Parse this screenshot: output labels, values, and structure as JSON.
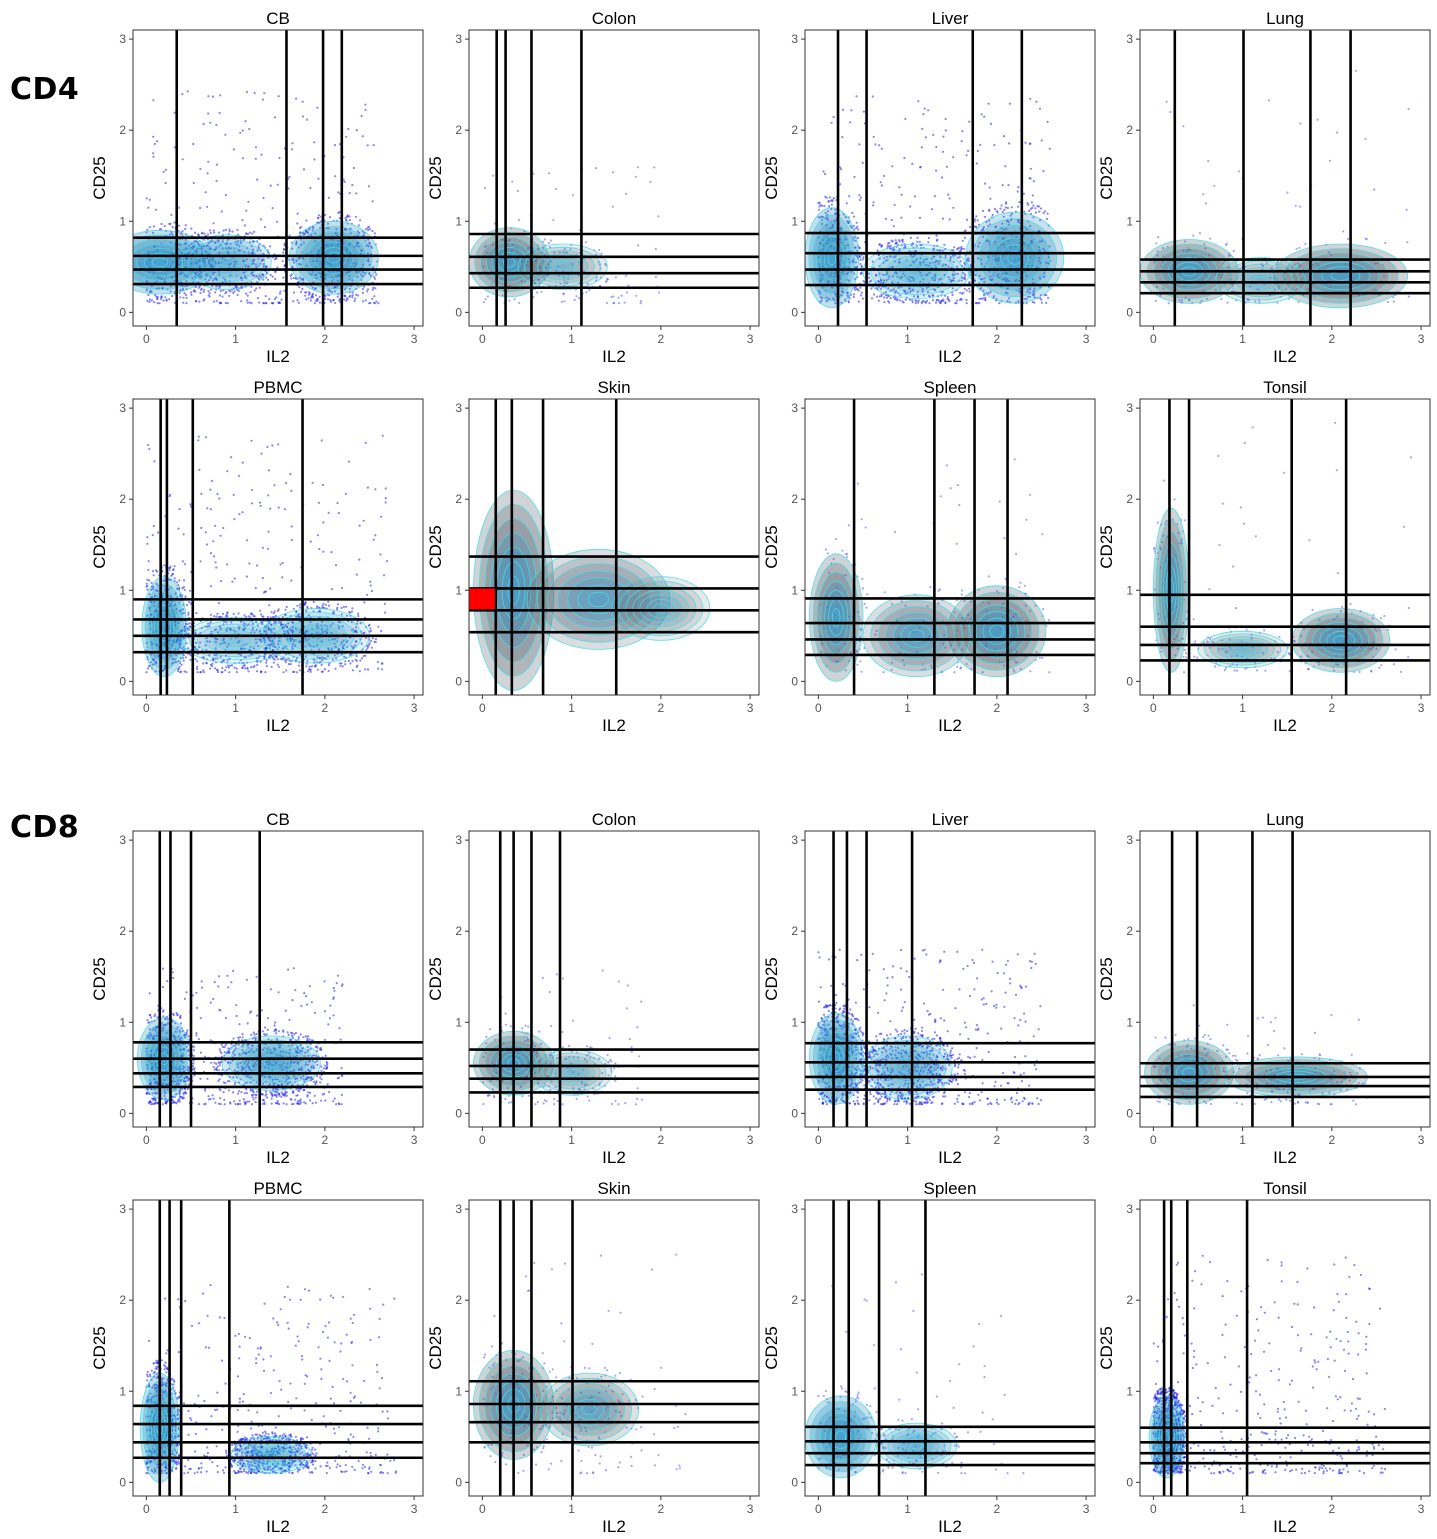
{
  "groups": [
    {
      "name": "CD4",
      "panels": [
        {
          "tissue": "CB",
          "vlines": [
            0.34,
            1.57,
            1.98,
            2.19
          ],
          "hlines": [
            0.82,
            0.62,
            0.47,
            0.31
          ],
          "density": [
            [
              0.15,
              0.55,
              0.6,
              0.35,
              1.0
            ],
            [
              2.1,
              0.6,
              0.5,
              0.4,
              1.0
            ],
            [
              0.9,
              0.55,
              0.5,
              0.3,
              0.6
            ]
          ],
          "scatter": {
            "x": [
              0,
              2.6
            ],
            "y": [
              0.1,
              2.5
            ],
            "density": "high"
          },
          "overlay": "blue"
        },
        {
          "tissue": "Colon",
          "vlines": [
            0.16,
            0.26,
            0.55,
            1.11
          ],
          "hlines": [
            0.86,
            0.61,
            0.43,
            0.27
          ],
          "density": [
            [
              0.3,
              0.55,
              0.45,
              0.38,
              1.0
            ],
            [
              0.9,
              0.5,
              0.5,
              0.25,
              0.5
            ]
          ],
          "scatter": {
            "x": [
              0,
              2.0
            ],
            "y": [
              0.1,
              1.6
            ],
            "density": "low"
          },
          "overlay": "grey"
        },
        {
          "tissue": "Liver",
          "vlines": [
            0.22,
            0.54,
            1.73,
            2.28
          ],
          "hlines": [
            0.87,
            0.65,
            0.47,
            0.3
          ],
          "density": [
            [
              0.15,
              0.6,
              0.3,
              0.55,
              1.0
            ],
            [
              2.2,
              0.6,
              0.55,
              0.5,
              0.9
            ],
            [
              1.1,
              0.45,
              0.6,
              0.3,
              0.5
            ]
          ],
          "scatter": {
            "x": [
              0,
              2.6
            ],
            "y": [
              0.1,
              2.4
            ],
            "density": "high"
          },
          "overlay": "blue"
        },
        {
          "tissue": "Lung",
          "vlines": [
            0.24,
            1.01,
            1.76,
            2.21
          ],
          "hlines": [
            0.58,
            0.45,
            0.33,
            0.21
          ],
          "density": [
            [
              0.4,
              0.45,
              0.55,
              0.35,
              1.0
            ],
            [
              2.1,
              0.4,
              0.75,
              0.35,
              1.0
            ],
            [
              1.2,
              0.35,
              0.5,
              0.25,
              0.5
            ]
          ],
          "scatter": {
            "x": [
              0,
              2.9
            ],
            "y": [
              0.1,
              2.8
            ],
            "density": "low"
          },
          "overlay": "grey"
        }
      ]
    },
    {
      "name": "CD4",
      "panels": [
        {
          "tissue": "PBMC",
          "vlines": [
            0.16,
            0.23,
            0.52,
            1.75
          ],
          "hlines": [
            0.9,
            0.68,
            0.5,
            0.32
          ],
          "density": [
            [
              0.2,
              0.6,
              0.25,
              0.55,
              1.0
            ],
            [
              1.9,
              0.5,
              0.6,
              0.3,
              0.5
            ],
            [
              1.0,
              0.45,
              0.6,
              0.25,
              0.4
            ]
          ],
          "scatter": {
            "x": [
              0,
              2.7
            ],
            "y": [
              0.1,
              2.7
            ],
            "density": "high"
          },
          "overlay": "blue"
        },
        {
          "tissue": "Skin",
          "vlines": [
            0.15,
            0.33,
            0.68,
            1.5
          ],
          "hlines": [
            1.37,
            1.02,
            0.78,
            0.54
          ],
          "density": [
            [
              0.35,
              1.0,
              0.45,
              1.1,
              1.0
            ],
            [
              1.3,
              0.9,
              0.8,
              0.55,
              0.8
            ],
            [
              2.0,
              0.8,
              0.55,
              0.35,
              0.5
            ]
          ],
          "scatter": {
            "x": [
              0,
              2.5
            ],
            "y": [
              0.1,
              2.4
            ],
            "density": "none"
          },
          "overlay": "grey",
          "marker": {
            "x0": -0.18,
            "x1": 0.14,
            "y0": 0.79,
            "y1": 1.02
          }
        },
        {
          "tissue": "Spleen",
          "vlines": [
            0.4,
            1.3,
            1.75,
            2.12
          ],
          "hlines": [
            0.91,
            0.64,
            0.46,
            0.29
          ],
          "density": [
            [
              0.2,
              0.7,
              0.3,
              0.7,
              1.0
            ],
            [
              2.0,
              0.55,
              0.55,
              0.5,
              1.0
            ],
            [
              1.1,
              0.5,
              0.6,
              0.45,
              0.8
            ]
          ],
          "scatter": {
            "x": [
              0,
              2.6
            ],
            "y": [
              0.1,
              2.5
            ],
            "density": "low"
          },
          "overlay": "grey"
        },
        {
          "tissue": "Tonsil",
          "vlines": [
            0.18,
            0.4,
            1.55,
            2.16
          ],
          "hlines": [
            0.95,
            0.6,
            0.4,
            0.23
          ],
          "density": [
            [
              0.2,
              1.0,
              0.2,
              0.9,
              1.0
            ],
            [
              2.1,
              0.45,
              0.55,
              0.35,
              1.0
            ],
            [
              1.0,
              0.35,
              0.5,
              0.2,
              0.5
            ]
          ],
          "scatter": {
            "x": [
              0,
              2.9
            ],
            "y": [
              0.1,
              2.9
            ],
            "density": "low"
          },
          "overlay": "grey"
        }
      ]
    },
    {
      "name": "CD8",
      "panels": [
        {
          "tissue": "CB",
          "vlines": [
            0.15,
            0.27,
            0.5,
            1.27
          ],
          "hlines": [
            0.78,
            0.6,
            0.44,
            0.29
          ],
          "density": [
            [
              0.2,
              0.6,
              0.3,
              0.45,
              1.0
            ],
            [
              1.4,
              0.55,
              0.55,
              0.3,
              0.7
            ]
          ],
          "scatter": {
            "x": [
              0,
              2.2
            ],
            "y": [
              0.1,
              1.6
            ],
            "density": "high"
          },
          "overlay": "blue"
        },
        {
          "tissue": "Colon",
          "vlines": [
            0.2,
            0.35,
            0.55,
            0.87
          ],
          "hlines": [
            0.7,
            0.52,
            0.38,
            0.23
          ],
          "density": [
            [
              0.35,
              0.55,
              0.45,
              0.35,
              1.0
            ],
            [
              1.0,
              0.45,
              0.45,
              0.25,
              0.5
            ]
          ],
          "scatter": {
            "x": [
              0,
              1.8
            ],
            "y": [
              0.1,
              1.6
            ],
            "density": "low"
          },
          "overlay": "grey"
        },
        {
          "tissue": "Liver",
          "vlines": [
            0.17,
            0.32,
            0.54,
            1.05
          ],
          "hlines": [
            0.77,
            0.56,
            0.4,
            0.26
          ],
          "density": [
            [
              0.2,
              0.6,
              0.3,
              0.5,
              1.0
            ],
            [
              1.0,
              0.5,
              0.5,
              0.35,
              0.6
            ]
          ],
          "scatter": {
            "x": [
              0,
              2.5
            ],
            "y": [
              0.1,
              1.8
            ],
            "density": "high"
          },
          "overlay": "blue"
        },
        {
          "tissue": "Lung",
          "vlines": [
            0.21,
            0.49,
            1.11,
            1.56
          ],
          "hlines": [
            0.55,
            0.4,
            0.3,
            0.18
          ],
          "density": [
            [
              0.4,
              0.45,
              0.5,
              0.35,
              1.0
            ],
            [
              1.6,
              0.4,
              0.8,
              0.22,
              0.9
            ]
          ],
          "scatter": {
            "x": [
              0,
              2.4
            ],
            "y": [
              0.1,
              1.2
            ],
            "density": "low"
          },
          "overlay": "grey"
        }
      ]
    },
    {
      "name": "CD8",
      "panels": [
        {
          "tissue": "PBMC",
          "vlines": [
            0.15,
            0.26,
            0.39,
            0.93
          ],
          "hlines": [
            0.84,
            0.64,
            0.44,
            0.27
          ],
          "density": [
            [
              0.15,
              0.6,
              0.22,
              0.6,
              1.0
            ],
            [
              1.4,
              0.3,
              0.45,
              0.2,
              0.5
            ]
          ],
          "scatter": {
            "x": [
              0,
              2.8
            ],
            "y": [
              0.1,
              2.2
            ],
            "density": "high"
          },
          "overlay": "blue"
        },
        {
          "tissue": "Skin",
          "vlines": [
            0.2,
            0.35,
            0.55,
            1.01
          ],
          "hlines": [
            1.11,
            0.86,
            0.66,
            0.44
          ],
          "density": [
            [
              0.35,
              0.85,
              0.45,
              0.6,
              1.0
            ],
            [
              1.2,
              0.8,
              0.55,
              0.4,
              0.7
            ]
          ],
          "scatter": {
            "x": [
              0,
              2.3
            ],
            "y": [
              0.1,
              2.6
            ],
            "density": "low"
          },
          "overlay": "grey"
        },
        {
          "tissue": "Spleen",
          "vlines": [
            0.17,
            0.34,
            0.68,
            1.2
          ],
          "hlines": [
            0.61,
            0.45,
            0.32,
            0.19
          ],
          "density": [
            [
              0.25,
              0.5,
              0.4,
              0.45,
              1.0
            ],
            [
              1.1,
              0.4,
              0.45,
              0.25,
              0.6
            ]
          ],
          "scatter": {
            "x": [
              0,
              2.3
            ],
            "y": [
              0.1,
              2.3
            ],
            "density": "low"
          },
          "overlay": "blue"
        },
        {
          "tissue": "Tonsil",
          "vlines": [
            0.12,
            0.2,
            0.38,
            1.05
          ],
          "hlines": [
            0.6,
            0.44,
            0.32,
            0.21
          ],
          "density": [
            [
              0.15,
              0.5,
              0.2,
              0.45,
              1.0
            ]
          ],
          "scatter": {
            "x": [
              0,
              2.6
            ],
            "y": [
              0.1,
              2.5
            ],
            "density": "high"
          },
          "overlay": "blue"
        }
      ]
    }
  ],
  "chart_data": {
    "type": "scatter",
    "xlabel": "IL2",
    "ylabel": "CD25",
    "xlim": [
      -0.15,
      3.1
    ],
    "ylim": [
      -0.15,
      3.1
    ],
    "xticks": [
      0,
      1,
      2,
      3
    ],
    "yticks": [
      0,
      1,
      2,
      3
    ],
    "grid": false,
    "colors": {
      "points": "#2020ee",
      "density_fill": "#2e8bbd",
      "density_grey": "#5a6470",
      "contour": "#40e0e8",
      "gate_lines": "#000000",
      "highlight": "#ff0000"
    }
  },
  "labels": {
    "cd4": "CD4",
    "cd8": "CD8"
  }
}
